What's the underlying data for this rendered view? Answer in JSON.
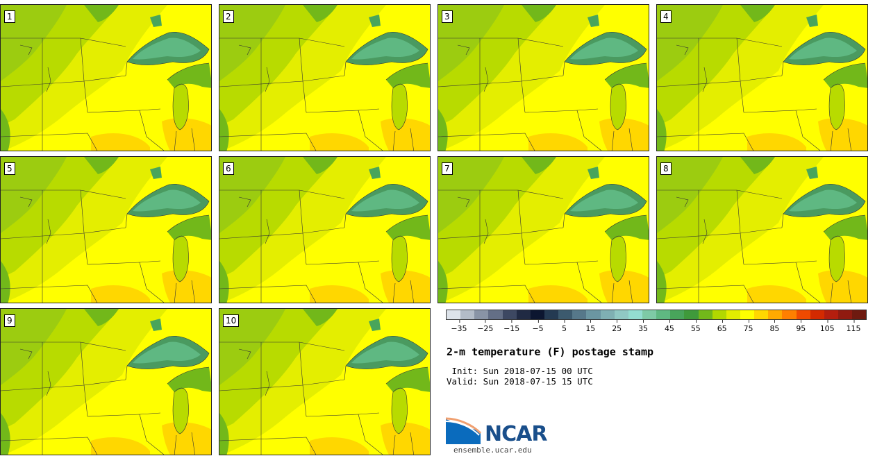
{
  "members": [
    "1",
    "2",
    "3",
    "4",
    "5",
    "6",
    "7",
    "8",
    "9",
    "10"
  ],
  "colorbar": {
    "colors": [
      "#dde3ea",
      "#b3bcc8",
      "#8994a6",
      "#646f86",
      "#3d4862",
      "#202a43",
      "#0c1630",
      "#243a52",
      "#3c5a6e",
      "#56788a",
      "#6b96a2",
      "#7fb0b3",
      "#90c8c4",
      "#93ddd0",
      "#7ecaa6",
      "#5fb882",
      "#48a55b",
      "#3f9a3b",
      "#72b81a",
      "#b2d800",
      "#e2ec00",
      "#ffff00",
      "#ffd700",
      "#ffaa00",
      "#ff7f00",
      "#f04a00",
      "#d42a00",
      "#b41e0e",
      "#901a10",
      "#6e1a10"
    ],
    "ticks": [
      "−35",
      "−25",
      "−15",
      "−5",
      "5",
      "15",
      "25",
      "35",
      "45",
      "55",
      "65",
      "75",
      "85",
      "95",
      "105",
      "115"
    ],
    "min": -40,
    "max": 120
  },
  "title": "2-m temperature (F) postage stamp",
  "init": " Init: Sun 2018-07-15 00 UTC",
  "valid": "Valid: Sun 2018-07-15 15 UTC",
  "logo": {
    "name": "NCAR",
    "url": "ensemble.ucar.edu"
  }
}
